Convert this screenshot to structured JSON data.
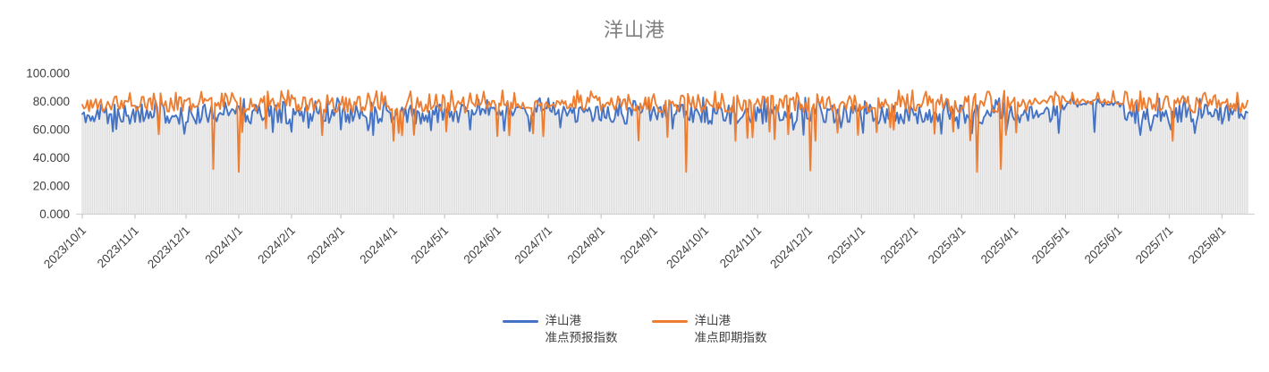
{
  "chart_data": {
    "type": "line",
    "title": "洋山港",
    "title_color": "#7f7f7f",
    "y_axis": {
      "min": 0,
      "max": 100,
      "ticks": [
        {
          "label": "0.000",
          "value": 0
        },
        {
          "label": "20.000",
          "value": 20
        },
        {
          "label": "40.000",
          "value": 40
        },
        {
          "label": "60.000",
          "value": 60
        },
        {
          "label": "80.000",
          "value": 80
        },
        {
          "label": "100.000",
          "value": 100
        }
      ],
      "label_color": "#404040"
    },
    "x_axis": {
      "start_date": "2023/10/1",
      "tick_labels": [
        "2023/10/1",
        "2023/11/1",
        "2023/12/1",
        "2024/1/1",
        "2024/2/1",
        "2024/3/1",
        "2024/4/1",
        "2024/5/1",
        "2024/6/1",
        "2024/7/1",
        "2024/8/1",
        "2024/9/1",
        "2024/10/1",
        "2024/11/1",
        "2024/12/1",
        "2025/1/1",
        "2025/2/1",
        "2025/3/1",
        "2025/4/1",
        "2025/5/1",
        "2025/6/1",
        "2025/7/1",
        "2025/8/1"
      ],
      "label_color": "#404040",
      "axis_line_color": "#d2d2d2",
      "tick_mark_color": "#c6c6c6"
    },
    "days": 686,
    "seed": 11,
    "grid": "off",
    "legend_position": "bottom-center",
    "drop_bars": {
      "color": "#dcdcdc",
      "description": "daily gray drop bars from axis up to the lower of the two line values"
    },
    "series": [
      {
        "name_lines": [
          "洋山港",
          "准点预报指数"
        ],
        "color": "#4472C4",
        "base": 71,
        "noise_amp": 7,
        "min": 56,
        "max": 84,
        "random_dip": {
          "chance": 0.05,
          "min": 56,
          "max": 62
        },
        "random_peak": {
          "chance": 0.07,
          "min": 79,
          "max": 83
        },
        "deep_dips": [
          {
            "day": 60,
            "value": 57
          },
          {
            "day": 505,
            "value": 57
          },
          {
            "day": 640,
            "value": 60
          }
        ],
        "typical_range": [
          60,
          82
        ]
      },
      {
        "name_lines": [
          "洋山港",
          "准点即期指数"
        ],
        "color": "#ED7D31",
        "base": 78,
        "noise_amp": 6,
        "min": 52,
        "max": 88,
        "random_dip": {
          "chance": 0.055,
          "min": 50,
          "max": 62
        },
        "random_peak": {
          "chance": 0.09,
          "min": 84,
          "max": 88
        },
        "deep_dips": [
          {
            "day": 77,
            "value": 32
          },
          {
            "day": 92,
            "value": 30
          },
          {
            "day": 183,
            "value": 52
          },
          {
            "day": 355,
            "value": 30
          },
          {
            "day": 428,
            "value": 31
          },
          {
            "day": 526,
            "value": 30
          },
          {
            "day": 540,
            "value": 32
          }
        ],
        "typical_range": [
          68,
          88
        ]
      }
    ],
    "calm_segments": [
      {
        "from": 228,
        "to": 288,
        "overrides": [
          {
            "base": 73,
            "amp": 3.5
          },
          {
            "base": 78,
            "amp": 3
          }
        ]
      },
      {
        "from": 578,
        "to": 612,
        "overrides": [
          {
            "base": 78,
            "amp": 2
          },
          {
            "base": 80,
            "amp": 2
          }
        ]
      }
    ]
  },
  "legend": {
    "items": [
      {
        "line1": "洋山港",
        "line2": "准点预报指数"
      },
      {
        "line1": "洋山港",
        "line2": "准点即期指数"
      }
    ]
  }
}
